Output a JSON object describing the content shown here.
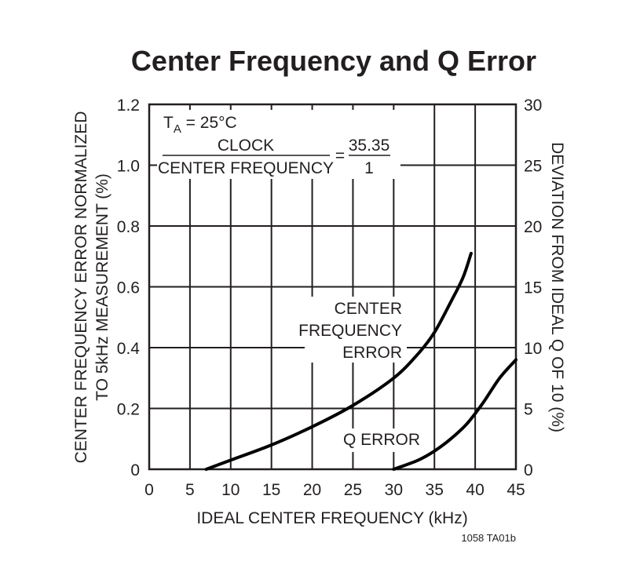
{
  "chart_data": {
    "type": "line",
    "title": "Center Frequency and Q Error",
    "xlabel": "IDEAL CENTER FREQUENCY (kHz)",
    "ylabel_left": [
      "CENTER FREQUENCY ERROR NORMALIZED",
      "TO 5kHz MEASUREMENT (%)"
    ],
    "ylabel_right": "DEVIATION FROM IDEAL Q OF 10 (%)",
    "xlim": [
      0,
      45
    ],
    "ylim_left": [
      0,
      1.2
    ],
    "ylim_right": [
      0,
      30
    ],
    "x_ticks": [
      "0",
      "5",
      "10",
      "15",
      "20",
      "25",
      "30",
      "35",
      "40",
      "45"
    ],
    "y_ticks_left": [
      "0",
      "0.2",
      "0.4",
      "0.6",
      "0.8",
      "1.0",
      "1.2"
    ],
    "y_ticks_right": [
      "0",
      "5",
      "10",
      "15",
      "20",
      "25",
      "30"
    ],
    "grid": true,
    "annotations": {
      "temp_main": "T",
      "temp_sub": "A",
      "temp_rest": " = 25°C",
      "ratio_numerator": "CLOCK",
      "ratio_denominator": "CENTER FREQUENCY",
      "ratio_equals": "=",
      "ratio_value_numerator": "35.35",
      "ratio_value_denominator": "1"
    },
    "series": [
      {
        "name": "CENTER FREQUENCY ERROR",
        "label_lines": [
          "CENTER",
          "FREQUENCY",
          "ERROR"
        ],
        "axis": "left",
        "x": [
          7,
          10,
          15,
          20,
          25,
          30,
          33,
          35,
          37,
          38.5,
          39.5
        ],
        "y": [
          0.0,
          0.03,
          0.08,
          0.14,
          0.21,
          0.3,
          0.38,
          0.45,
          0.55,
          0.63,
          0.71
        ]
      },
      {
        "name": "Q ERROR",
        "label_lines": [
          "Q ERROR"
        ],
        "axis": "right",
        "x": [
          30,
          33,
          35,
          37,
          39,
          41,
          43,
          45
        ],
        "y": [
          0.0,
          0.75,
          1.5,
          2.5,
          3.75,
          5.5,
          7.5,
          9.0
        ]
      }
    ],
    "figure_id": "1058 TA01b"
  }
}
